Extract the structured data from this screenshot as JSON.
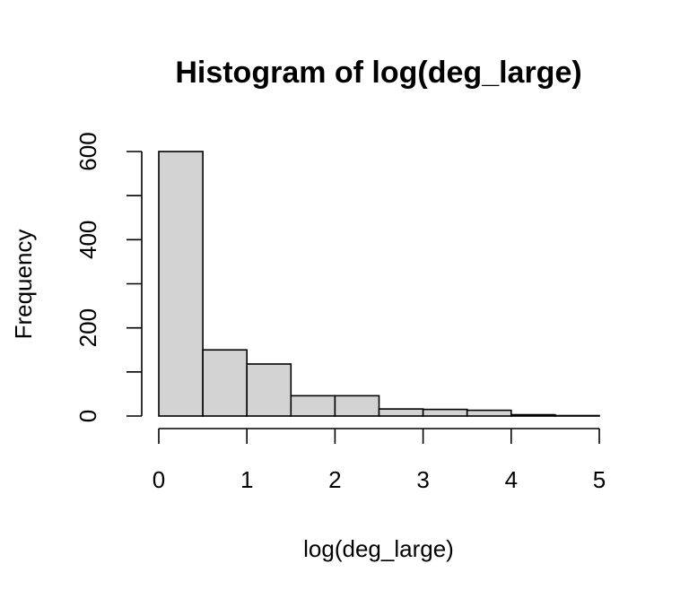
{
  "chart_data": {
    "type": "bar",
    "title": "Histogram of log(deg_large)",
    "xlabel": "log(deg_large)",
    "ylabel": "Frequency",
    "bins": [
      {
        "x0": 0.0,
        "x1": 0.5,
        "count": 600
      },
      {
        "x0": 0.5,
        "x1": 1.0,
        "count": 150
      },
      {
        "x0": 1.0,
        "x1": 1.5,
        "count": 118
      },
      {
        "x0": 1.5,
        "x1": 2.0,
        "count": 46
      },
      {
        "x0": 2.0,
        "x1": 2.5,
        "count": 46
      },
      {
        "x0": 2.5,
        "x1": 3.0,
        "count": 16
      },
      {
        "x0": 3.0,
        "x1": 3.5,
        "count": 15
      },
      {
        "x0": 3.5,
        "x1": 4.0,
        "count": 13
      },
      {
        "x0": 4.0,
        "x1": 4.5,
        "count": 3
      },
      {
        "x0": 4.5,
        "x1": 5.0,
        "count": 1
      }
    ],
    "xlim": [
      0,
      5
    ],
    "ylim": [
      0,
      600
    ],
    "x_ticks": [
      "0",
      "1",
      "2",
      "3",
      "4",
      "5"
    ],
    "y_ticks": [
      "0",
      "200",
      "400",
      "600"
    ],
    "y_minor_ticks": [
      100,
      300,
      500
    ],
    "grid": false,
    "colors": {
      "bar_fill": "#d3d3d3",
      "bar_stroke": "#000000"
    }
  }
}
